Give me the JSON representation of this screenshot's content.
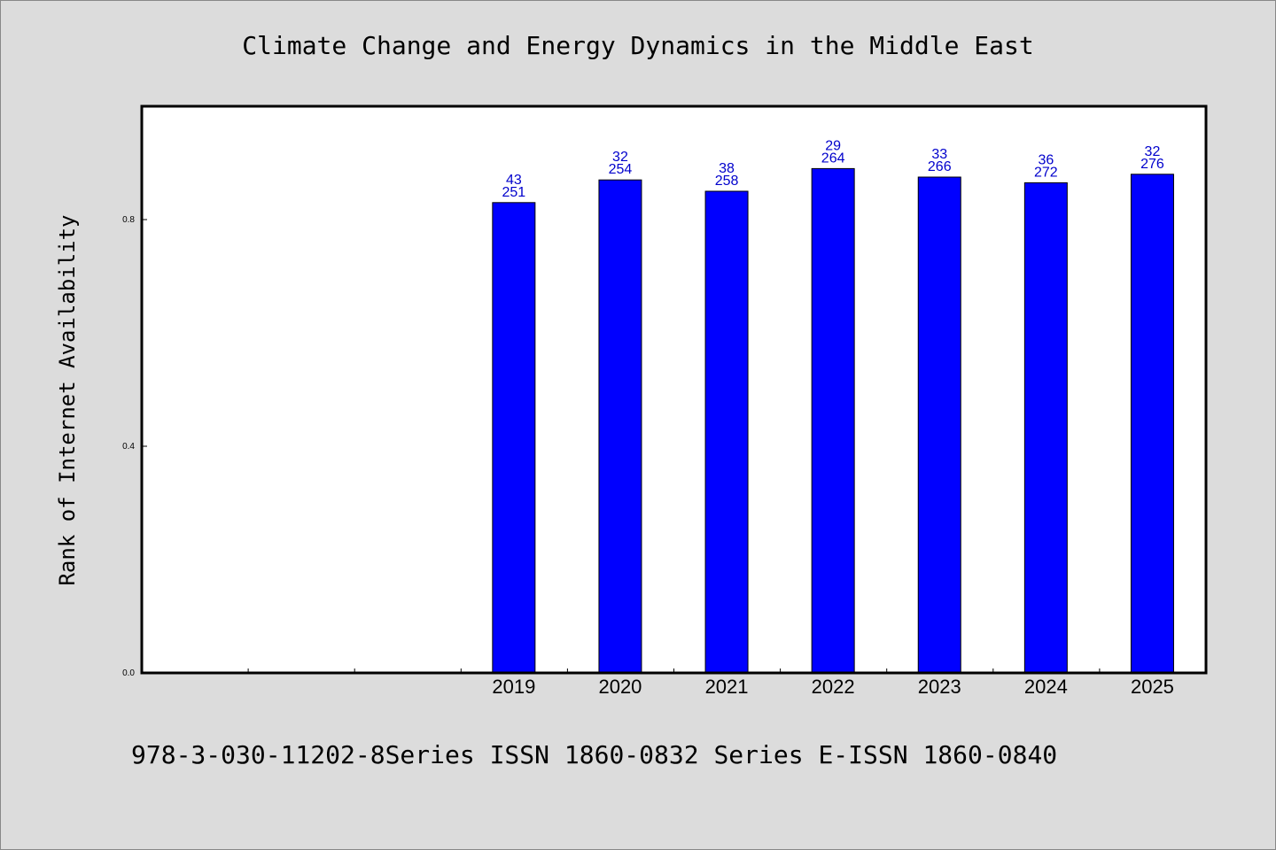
{
  "chart_data": {
    "type": "bar",
    "title": "Climate Change and Energy Dynamics in the Middle East",
    "ylabel": "Rank of Internet Availability",
    "xlabel": "",
    "categories": [
      "",
      "",
      "",
      "2019",
      "2020",
      "2021",
      "2022",
      "2023",
      "2024",
      "2025"
    ],
    "values": [
      null,
      null,
      null,
      0.83,
      0.87,
      0.85,
      0.89,
      0.875,
      0.865,
      0.88
    ],
    "data_labels": [
      null,
      null,
      null,
      [
        "43",
        "251"
      ],
      [
        "32",
        "254"
      ],
      [
        "38",
        "258"
      ],
      [
        "29",
        "264"
      ],
      [
        "33",
        "266"
      ],
      [
        "36",
        "272"
      ],
      [
        "32",
        "276"
      ]
    ],
    "ylim": [
      0,
      1.0
    ],
    "yticks": [
      {
        "value": 0.0,
        "label": "0.0"
      },
      {
        "value": 0.4,
        "label": "0.4"
      },
      {
        "value": 0.8,
        "label": "0.8"
      }
    ],
    "grid": false,
    "legend": "none"
  },
  "footer": "978-3-030-11202-8Series ISSN 1860-0832 Series E-ISSN 1860-0840",
  "colors": {
    "background": "#dcdcdc",
    "plot_background": "#ffffff",
    "bar": "#0000ff",
    "bar_edge": "#000000",
    "data_label": "#0000cc"
  }
}
